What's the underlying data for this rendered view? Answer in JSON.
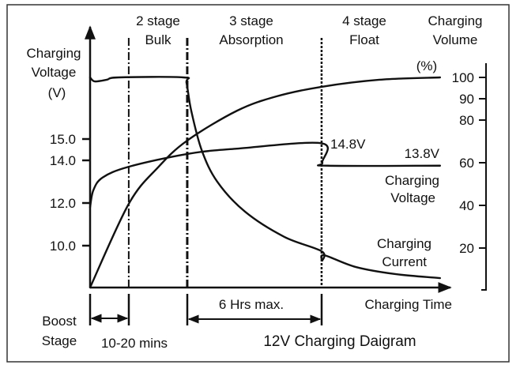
{
  "chart_data": {
    "type": "line",
    "title": "12V Charging Daigram",
    "xlabel": "Charging Time",
    "left_axis": {
      "label": [
        "Charging",
        "Voltage",
        "(V)"
      ],
      "ticks": [
        15.0,
        14.0,
        12.0,
        10.0
      ],
      "tick_labels": [
        "15.0",
        "14.0",
        "12.0",
        "10.0"
      ],
      "unit": "V"
    },
    "right_axis": {
      "label": [
        "Charging",
        "Volume"
      ],
      "unit_label": "(%)",
      "ticks": [
        100,
        90,
        80,
        60,
        40,
        20
      ],
      "tick_labels": [
        "100",
        "90",
        "80",
        "60",
        "40",
        "20"
      ]
    },
    "x_range": [
      0,
      100
    ],
    "stages": [
      {
        "name": [
          "2 stage",
          "Bulk"
        ],
        "start": 10.7,
        "end": 26.9
      },
      {
        "name": [
          "3 stage",
          "Absorption"
        ],
        "start": 26.9,
        "end": 64.1
      },
      {
        "name": [
          "4 stage",
          "Float"
        ],
        "start": 64.1,
        "end": 100
      }
    ],
    "stage_boundaries": [
      10.7,
      26.9,
      64.1
    ],
    "intervals": [
      {
        "label": "10-20 mins",
        "start": 0,
        "end": 10.7
      },
      {
        "label": "6 Hrs max.",
        "start": 26.9,
        "end": 64.1
      }
    ],
    "boost_label": [
      "Boost",
      "Stage"
    ],
    "series": [
      {
        "name": [
          "Charging",
          "Voltage"
        ],
        "axis": "left",
        "unit": "V",
        "points": [
          [
            0,
            11.8
          ],
          [
            0.9,
            12.6
          ],
          [
            3.5,
            13.2
          ],
          [
            10.7,
            13.7
          ],
          [
            26.9,
            14.3
          ],
          [
            40.7,
            14.55
          ],
          [
            64.1,
            14.8
          ],
          [
            64.3,
            13.9
          ],
          [
            65.9,
            13.75
          ],
          [
            96.9,
            13.75
          ]
        ],
        "annotations": [
          "14.8V",
          "13.8V"
        ]
      },
      {
        "name": [
          "Charging",
          "Volume"
        ],
        "axis": "right",
        "unit": "%",
        "points": [
          [
            0,
            1.5
          ],
          [
            10.7,
            40.7
          ],
          [
            18.8,
            57.8
          ],
          [
            26.9,
            70.4
          ],
          [
            40.7,
            84.4
          ],
          [
            51.6,
            91.1
          ],
          [
            64.1,
            95.6
          ],
          [
            80.1,
            98.9
          ],
          [
            96.9,
            100
          ]
        ]
      },
      {
        "name": [
          "Charging",
          "Current"
        ],
        "axis": "relative",
        "unit": "%",
        "points": [
          [
            0,
            100
          ],
          [
            1.3,
            98.1
          ],
          [
            4.6,
            98.9
          ],
          [
            7.9,
            100
          ],
          [
            25.8,
            100
          ],
          [
            26.7,
            97.4
          ],
          [
            28,
            84.2
          ],
          [
            30.9,
            65.4
          ],
          [
            35.2,
            50.4
          ],
          [
            42.9,
            36.1
          ],
          [
            53.8,
            24.1
          ],
          [
            64.1,
            17.3
          ],
          [
            64.3,
            12.8
          ],
          [
            64.8,
            15.4
          ],
          [
            73.5,
            9.8
          ],
          [
            84.5,
            6.4
          ],
          [
            96.9,
            4.5
          ]
        ]
      }
    ]
  }
}
